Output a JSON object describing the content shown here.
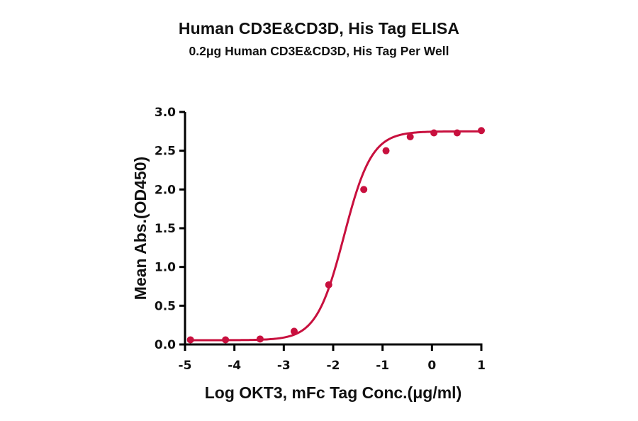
{
  "header": {
    "title": "Human CD3E&CD3D, His Tag ELISA",
    "subtitle": "0.2μg Human CD3E&CD3D, His Tag Per Well"
  },
  "chart_data": {
    "type": "line",
    "title": "Human CD3E&CD3D, His Tag ELISA",
    "subtitle": "0.2μg Human CD3E&CD3D, His Tag Per Well",
    "xlabel": "Log OKT3, mFc Tag Conc.(μg/ml)",
    "ylabel": "Mean Abs.(OD450)",
    "xlim": [
      -5,
      1
    ],
    "ylim": [
      0,
      3.0
    ],
    "x_ticks": [
      "-5",
      "-4",
      "-3",
      "-2",
      "-1",
      "0",
      "1"
    ],
    "y_ticks": [
      "0.0",
      "0.5",
      "1.0",
      "1.5",
      "2.0",
      "2.5",
      "3.0"
    ],
    "grid": false,
    "legend": null,
    "series": [
      {
        "name": "OKT3, mFc Tag",
        "color": "#c8103e",
        "marker": "circle",
        "fit": "4PL sigmoid",
        "x": [
          -4.89,
          -4.18,
          -3.48,
          -2.79,
          -2.09,
          -1.38,
          -0.93,
          -0.44,
          0.04,
          0.51,
          1.0
        ],
        "y": [
          0.06,
          0.06,
          0.07,
          0.17,
          0.77,
          2.0,
          2.5,
          2.68,
          2.73,
          2.73,
          2.76
        ]
      }
    ]
  }
}
